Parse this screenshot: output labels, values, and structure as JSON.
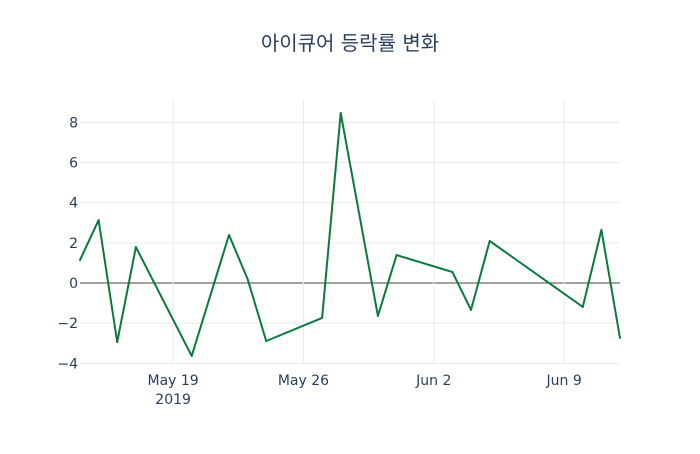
{
  "chart_data": {
    "type": "line",
    "title": "아이큐어 등락률 변화",
    "xlabel": "",
    "ylabel": "",
    "x": [
      "2019-05-14",
      "2019-05-15",
      "2019-05-16",
      "2019-05-17",
      "2019-05-20",
      "2019-05-22",
      "2019-05-23",
      "2019-05-24",
      "2019-05-27",
      "2019-05-28",
      "2019-05-30",
      "2019-05-31",
      "2019-06-03",
      "2019-06-04",
      "2019-06-05",
      "2019-06-10",
      "2019-06-11",
      "2019-06-12"
    ],
    "series": [
      {
        "name": "등락률",
        "color": "#0b7a3e",
        "values": [
          1.14,
          3.13,
          -2.94,
          1.79,
          -3.63,
          2.39,
          0.2,
          -2.89,
          -1.74,
          8.46,
          -1.64,
          1.39,
          0.55,
          -1.34,
          2.09,
          -1.19,
          2.64,
          -2.74
        ]
      }
    ],
    "xlim": [
      "2019-05-14",
      "2019-06-12"
    ],
    "ylim": [
      -4.5,
      9.2
    ],
    "xticks": [
      {
        "date": "2019-05-19",
        "label": "May 19",
        "sublabel": "2019"
      },
      {
        "date": "2019-05-26",
        "label": "May 26"
      },
      {
        "date": "2019-06-02",
        "label": "Jun 2"
      },
      {
        "date": "2019-06-09",
        "label": "Jun 9"
      }
    ],
    "yticks": [
      -4,
      -2,
      0,
      2,
      4,
      6,
      8
    ],
    "ytick_labels": [
      "−4",
      "−2",
      "0",
      "2",
      "4",
      "6",
      "8"
    ],
    "grid": true,
    "legend": "none"
  }
}
